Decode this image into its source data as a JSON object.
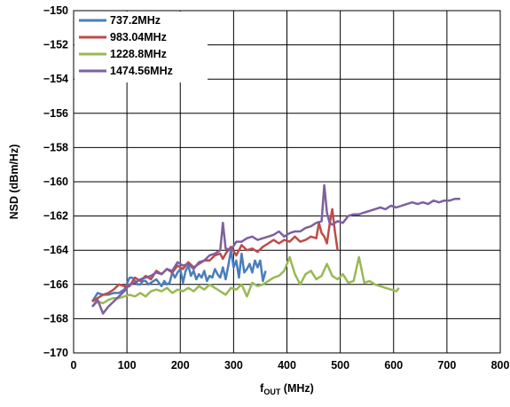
{
  "chart_data": {
    "type": "line",
    "xlabel": "f",
    "xlabel_sub": "OUT",
    "xlabel_unit": " (MHz)",
    "ylabel": "NSD (dBm/Hz)",
    "xlim": [
      0,
      800
    ],
    "ylim": [
      -170,
      -150
    ],
    "x_ticks": [
      0,
      100,
      200,
      300,
      400,
      500,
      600,
      700,
      800
    ],
    "y_ticks": [
      -170,
      -168,
      -166,
      -164,
      -162,
      -160,
      -158,
      -156,
      -154,
      -152,
      -150
    ],
    "grid": true,
    "legend_position": "top-left",
    "series": [
      {
        "name": "737.2MHz",
        "color": "#4a7ebb",
        "x": [
          35,
          45,
          55,
          65,
          75,
          85,
          95,
          105,
          110,
          115,
          120,
          125,
          130,
          135,
          140,
          145,
          150,
          155,
          160,
          165,
          170,
          175,
          180,
          185,
          190,
          195,
          200,
          205,
          210,
          215,
          220,
          225,
          230,
          235,
          240,
          245,
          250,
          255,
          260,
          265,
          270,
          275,
          280,
          285,
          290,
          295,
          300,
          305,
          310,
          315,
          320,
          325,
          330,
          335,
          340,
          345,
          350,
          355,
          360
        ],
        "y": [
          -167.0,
          -166.5,
          -166.6,
          -166.6,
          -166.5,
          -166.5,
          -166.3,
          -165.6,
          -165.6,
          -165.8,
          -166.0,
          -166.0,
          -165.8,
          -165.8,
          -166.0,
          -165.9,
          -165.8,
          -165.7,
          -165.9,
          -166.1,
          -165.8,
          -166.0,
          -165.9,
          -165.3,
          -165.6,
          -165.3,
          -165.1,
          -165.9,
          -165.2,
          -164.9,
          -165.5,
          -165.2,
          -165.7,
          -165.4,
          -165.6,
          -165.2,
          -165.8,
          -165.5,
          -165.6,
          -165.1,
          -165.4,
          -165.6,
          -165.0,
          -165.7,
          -164.9,
          -164.0,
          -165.0,
          -164.6,
          -165.6,
          -164.2,
          -165.3,
          -165.1,
          -164.8,
          -165.3,
          -164.6,
          -165.0,
          -164.6,
          -165.8,
          -165.2
        ]
      },
      {
        "name": "983.04MHz",
        "color": "#be4b48",
        "x": [
          35,
          45,
          55,
          65,
          75,
          85,
          95,
          105,
          115,
          125,
          135,
          145,
          155,
          165,
          175,
          185,
          195,
          205,
          215,
          225,
          235,
          245,
          255,
          265,
          275,
          280,
          285,
          295,
          305,
          315,
          325,
          335,
          345,
          355,
          365,
          375,
          385,
          395,
          405,
          415,
          425,
          435,
          445,
          455,
          460,
          465,
          470,
          475,
          480,
          485,
          490,
          495
        ],
        "y": [
          -167.0,
          -166.8,
          -166.6,
          -166.5,
          -166.3,
          -166.0,
          -166.1,
          -166.1,
          -165.6,
          -165.8,
          -165.5,
          -165.7,
          -165.2,
          -165.4,
          -165.1,
          -165.3,
          -164.9,
          -165.1,
          -164.7,
          -165.0,
          -164.8,
          -164.6,
          -164.6,
          -164.3,
          -164.2,
          -164.5,
          -164.2,
          -163.8,
          -164.3,
          -163.7,
          -164.0,
          -163.9,
          -164.1,
          -163.8,
          -163.6,
          -163.4,
          -163.6,
          -163.4,
          -163.5,
          -163.2,
          -163.5,
          -163.4,
          -163.2,
          -163.3,
          -162.4,
          -163.0,
          -163.2,
          -163.6,
          -162.5,
          -161.6,
          -162.9,
          -164.0
        ]
      },
      {
        "name": "1228.8MHz",
        "color": "#98b954",
        "x": [
          35,
          45,
          55,
          65,
          75,
          85,
          95,
          105,
          115,
          125,
          135,
          145,
          155,
          165,
          175,
          185,
          195,
          205,
          215,
          225,
          235,
          245,
          255,
          265,
          275,
          285,
          295,
          305,
          315,
          325,
          335,
          345,
          355,
          365,
          375,
          385,
          395,
          405,
          415,
          425,
          435,
          445,
          455,
          465,
          475,
          485,
          495,
          505,
          515,
          525,
          535,
          545,
          555,
          565,
          575,
          585,
          595,
          605,
          610
        ],
        "y": [
          -167.3,
          -167.0,
          -167.1,
          -166.9,
          -166.8,
          -166.8,
          -166.7,
          -166.6,
          -166.7,
          -166.5,
          -166.7,
          -166.4,
          -166.3,
          -166.4,
          -166.2,
          -166.5,
          -166.3,
          -166.4,
          -166.2,
          -166.4,
          -166.1,
          -166.3,
          -166.0,
          -166.2,
          -166.4,
          -166.6,
          -166.2,
          -166.3,
          -166.0,
          -166.7,
          -165.9,
          -166.1,
          -166.0,
          -165.8,
          -165.6,
          -165.5,
          -165.2,
          -164.4,
          -165.4,
          -166.0,
          -165.4,
          -165.2,
          -165.7,
          -165.5,
          -164.8,
          -165.5,
          -165.7,
          -165.4,
          -165.9,
          -165.8,
          -164.4,
          -165.9,
          -165.8,
          -166.0,
          -166.1,
          -166.2,
          -166.3,
          -166.4,
          -166.2
        ]
      },
      {
        "name": "1474.56MHz",
        "color": "#7d60a0",
        "x": [
          35,
          45,
          55,
          65,
          75,
          85,
          95,
          105,
          115,
          125,
          135,
          145,
          155,
          165,
          175,
          185,
          195,
          205,
          215,
          225,
          235,
          245,
          255,
          265,
          275,
          280,
          285,
          295,
          305,
          315,
          325,
          335,
          345,
          355,
          365,
          375,
          385,
          395,
          405,
          415,
          425,
          435,
          445,
          455,
          465,
          470,
          475,
          480,
          485,
          495,
          505,
          515,
          525,
          535,
          545,
          555,
          565,
          575,
          585,
          595,
          605,
          615,
          625,
          635,
          645,
          655,
          665,
          675,
          685,
          695,
          705,
          715,
          725
        ],
        "y": [
          -167.3,
          -166.9,
          -167.7,
          -167.3,
          -167.0,
          -166.7,
          -166.4,
          -166.0,
          -165.9,
          -165.7,
          -165.6,
          -165.5,
          -165.3,
          -165.4,
          -165.1,
          -165.2,
          -164.7,
          -164.9,
          -164.8,
          -165.1,
          -164.7,
          -164.6,
          -164.3,
          -164.2,
          -164.0,
          -162.4,
          -163.9,
          -164.0,
          -163.5,
          -163.5,
          -163.3,
          -163.2,
          -163.4,
          -163.3,
          -163.2,
          -163.1,
          -162.9,
          -163.2,
          -163.0,
          -162.9,
          -162.9,
          -162.7,
          -162.6,
          -162.4,
          -162.3,
          -160.2,
          -161.8,
          -162.4,
          -162.5,
          -162.3,
          -162.4,
          -162.0,
          -161.9,
          -161.9,
          -161.8,
          -161.7,
          -161.6,
          -161.5,
          -161.6,
          -161.4,
          -161.5,
          -161.4,
          -161.3,
          -161.2,
          -161.3,
          -161.2,
          -161.3,
          -161.1,
          -161.2,
          -161.1,
          -161.1,
          -161.0,
          -161.0
        ]
      }
    ]
  }
}
